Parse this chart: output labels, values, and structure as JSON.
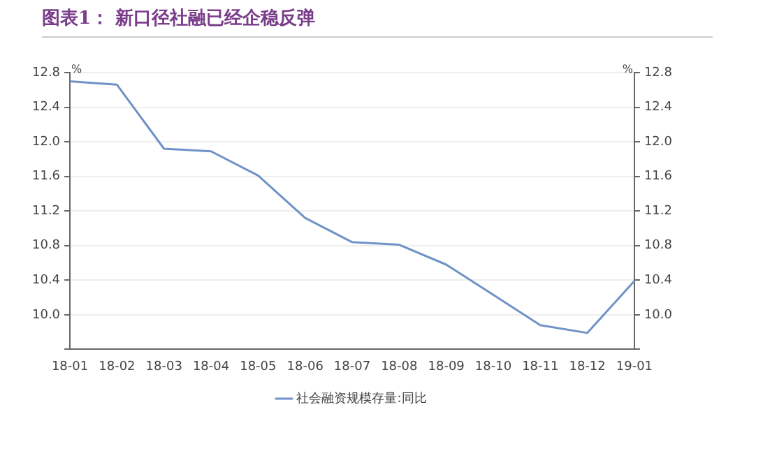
{
  "chart_data": {
    "type": "line",
    "title": "图表1： 新口径社融已经企稳反弹",
    "ylabel": "%",
    "y2label": "%",
    "categories": [
      "18-01",
      "18-02",
      "18-03",
      "18-04",
      "18-05",
      "18-06",
      "18-07",
      "18-08",
      "18-09",
      "18-10",
      "18-11",
      "18-12",
      "19-01"
    ],
    "series": [
      {
        "name": "社会融资规模存量:同比",
        "color": "#6f93c6",
        "values": [
          12.7,
          12.66,
          11.92,
          11.89,
          11.61,
          11.12,
          10.84,
          10.81,
          10.58,
          10.23,
          9.88,
          9.79,
          10.39
        ]
      }
    ],
    "ylim": [
      9.6,
      12.8
    ],
    "yticks": [
      {
        "value": 9.6,
        "label": null
      },
      {
        "value": 10,
        "label": "10.0"
      },
      10.4,
      10.8,
      11.2,
      11.6,
      {
        "value": 12,
        "label": "12.0"
      },
      12.4,
      12.8
    ],
    "y2lim": [
      9.6,
      12.8
    ],
    "y2ticks": [
      {
        "value": 9.6,
        "label": null
      },
      {
        "value": 10,
        "label": "10.0"
      },
      10.4,
      10.8,
      11.2,
      11.6,
      {
        "value": 12,
        "label": "12.0"
      },
      12.4,
      12.8
    ],
    "grid": "y",
    "legend": "bottom",
    "marker": "none",
    "line_style": "solid"
  }
}
